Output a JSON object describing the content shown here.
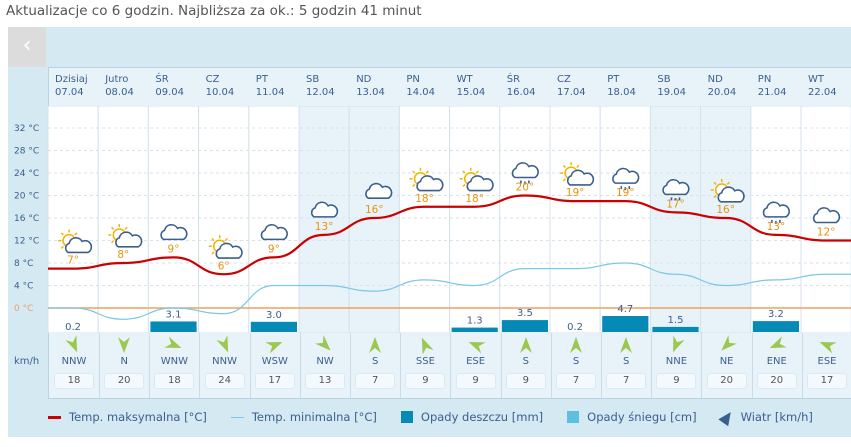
{
  "update_text": "Aktualizacje co 6 godzin. Najbliższa za ok.: 5 godzin 41 minut",
  "colors": {
    "max": "#cc0000",
    "min": "#7cc7e6",
    "rain": "#0589b5",
    "snow": "#5fbfe0",
    "zero": "#f0a060",
    "wind": "#9bc84f"
  },
  "yaxis": [
    "32 °C",
    "28 °C",
    "24 °C",
    "20 °C",
    "16 °C",
    "12 °C",
    "8 °C",
    "4 °C",
    "0 °C"
  ],
  "unit_kmh": "km/h",
  "days": [
    {
      "name": "Dzisiaj",
      "date": "07.04",
      "max": 7,
      "min": 0,
      "icon": "sun-cloud",
      "rain": 0.2,
      "wdir": "NNW",
      "wdeg": 337,
      "wspd": "18",
      "weekend": false
    },
    {
      "name": "Jutro",
      "date": "08.04",
      "max": 8,
      "min": -2,
      "icon": "sun-cloud",
      "rain": 0,
      "wdir": "N",
      "wdeg": 0,
      "wspd": "20",
      "weekend": false
    },
    {
      "name": "ŚR",
      "date": "09.04",
      "max": 9,
      "min": 0,
      "icon": "cloud",
      "rain": 3.1,
      "wdir": "WNW",
      "wdeg": 292,
      "wspd": "18",
      "weekend": false
    },
    {
      "name": "CZ",
      "date": "10.04",
      "max": 6,
      "min": -1,
      "icon": "sun-cloud",
      "rain": 0,
      "wdir": "NNW",
      "wdeg": 337,
      "wspd": "24",
      "weekend": false
    },
    {
      "name": "PT",
      "date": "11.04",
      "max": 9,
      "min": 4,
      "icon": "cloud",
      "rain": 3.0,
      "wdir": "WSW",
      "wdeg": 248,
      "wspd": "17",
      "weekend": false
    },
    {
      "name": "SB",
      "date": "12.04",
      "max": 13,
      "min": 4,
      "icon": "cloud",
      "rain": 0,
      "wdir": "NW",
      "wdeg": 315,
      "wspd": "13",
      "weekend": true
    },
    {
      "name": "ND",
      "date": "13.04",
      "max": 16,
      "min": 3,
      "icon": "clouds",
      "rain": 0,
      "wdir": "S",
      "wdeg": 180,
      "wspd": "7",
      "weekend": true
    },
    {
      "name": "PN",
      "date": "14.04",
      "max": 18,
      "min": 5,
      "icon": "sun-cloud",
      "rain": 0,
      "wdir": "SSE",
      "wdeg": 157,
      "wspd": "9",
      "weekend": false
    },
    {
      "name": "WT",
      "date": "15.04",
      "max": 18,
      "min": 4,
      "icon": "sun-cloud",
      "rain": 1.3,
      "wdir": "ESE",
      "wdeg": 112,
      "wspd": "9",
      "weekend": false
    },
    {
      "name": "ŚR",
      "date": "16.04",
      "max": 20,
      "min": 7,
      "icon": "rain-cloud",
      "rain": 3.5,
      "wdir": "S",
      "wdeg": 180,
      "wspd": "9",
      "weekend": false
    },
    {
      "name": "CZ",
      "date": "17.04",
      "max": 19,
      "min": 7,
      "icon": "sun-cloud",
      "rain": 0.2,
      "wdir": "S",
      "wdeg": 180,
      "wspd": "7",
      "weekend": false
    },
    {
      "name": "PT",
      "date": "18.04",
      "max": 19,
      "min": 8,
      "icon": "rain-cloud",
      "rain": 4.7,
      "wdir": "S",
      "wdeg": 180,
      "wspd": "7",
      "weekend": false
    },
    {
      "name": "SB",
      "date": "19.04",
      "max": 17,
      "min": 6,
      "icon": "snow-cloud",
      "rain": 1.5,
      "wdir": "NNE",
      "wdeg": 22,
      "wspd": "9",
      "weekend": true
    },
    {
      "name": "ND",
      "date": "20.04",
      "max": 16,
      "min": 4,
      "icon": "sun-cloud",
      "rain": 0,
      "wdir": "NE",
      "wdeg": 45,
      "wspd": "20",
      "weekend": true
    },
    {
      "name": "PN",
      "date": "21.04",
      "max": 13,
      "min": 5,
      "icon": "rain-cloud",
      "rain": 3.2,
      "wdir": "ENE",
      "wdeg": 67,
      "wspd": "20",
      "weekend": false
    },
    {
      "name": "WT",
      "date": "22.04",
      "max": 12,
      "min": 6,
      "icon": "cloud",
      "rain": 0,
      "wdir": "ESE",
      "wdeg": 112,
      "wspd": "17",
      "weekend": false
    }
  ],
  "legend": {
    "max": "Temp. maksymalna [°C]",
    "min": "Temp. minimalna [°C]",
    "rain": "Opady deszczu [mm]",
    "snow": "Opady śniegu [cm]",
    "wind": "Wiatr [km/h]"
  }
}
